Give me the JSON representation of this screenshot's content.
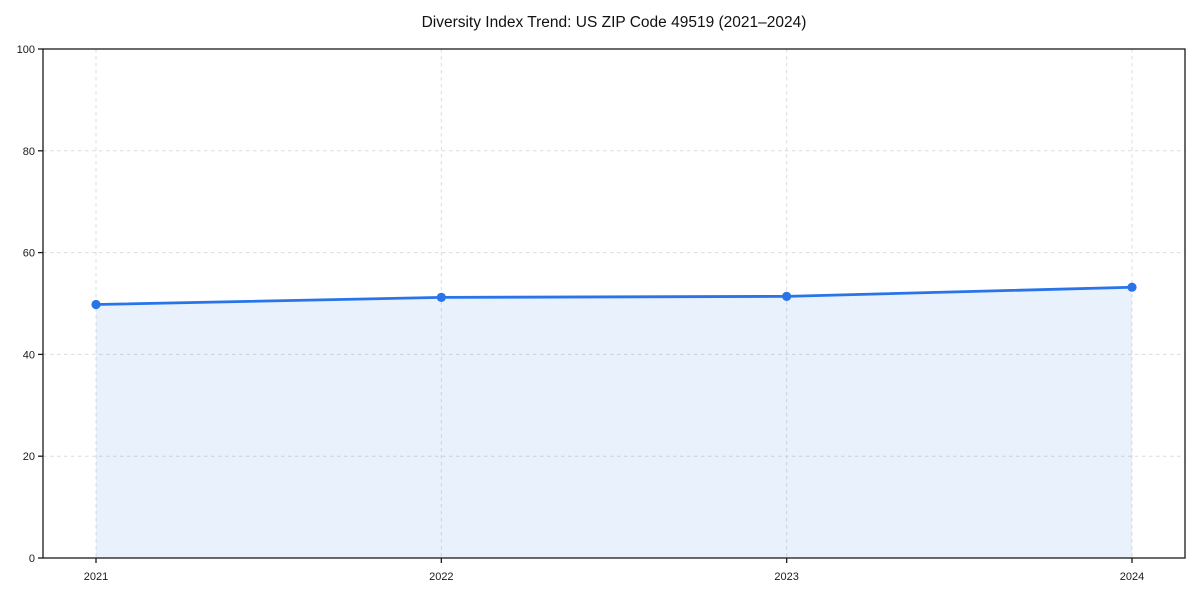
{
  "chart_data": {
    "type": "line",
    "title": "Diversity Index Trend: US ZIP Code 49519 (2021–2024)",
    "x": [
      "2021",
      "2022",
      "2023",
      "2024"
    ],
    "series": [
      {
        "name": "Diversity Index",
        "values": [
          49.8,
          51.2,
          51.4,
          53.2
        ],
        "color": "#2874E8",
        "marker": "circle",
        "area_fill": true,
        "area_fill_opacity": 0.1
      }
    ],
    "xlabel": "",
    "ylabel": "",
    "ylim": [
      0,
      100
    ],
    "yticks": [
      0,
      20,
      40,
      60,
      80,
      100
    ],
    "grid": {
      "visible": true,
      "style": "dashed",
      "color": "#DCDCDC"
    },
    "legend_position": "none",
    "background": "#FFFFFF",
    "axis_color": "#1A1A1A"
  }
}
